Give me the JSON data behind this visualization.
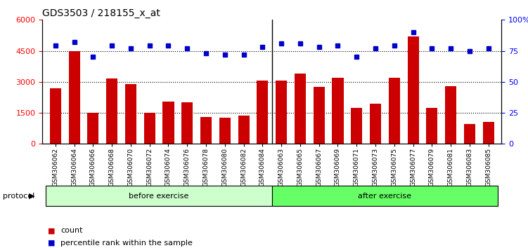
{
  "title": "GDS3503 / 218155_x_at",
  "categories": [
    "GSM306062",
    "GSM306064",
    "GSM306066",
    "GSM306068",
    "GSM306070",
    "GSM306072",
    "GSM306074",
    "GSM306076",
    "GSM306078",
    "GSM306080",
    "GSM306082",
    "GSM306084",
    "GSM306063",
    "GSM306065",
    "GSM306067",
    "GSM306069",
    "GSM306071",
    "GSM306073",
    "GSM306075",
    "GSM306077",
    "GSM306079",
    "GSM306081",
    "GSM306083",
    "GSM306085"
  ],
  "bar_values": [
    2700,
    4500,
    1500,
    3150,
    2900,
    1500,
    2050,
    2000,
    1300,
    1250,
    1350,
    3050,
    3050,
    3400,
    2750,
    3200,
    1750,
    1950,
    3200,
    5200,
    1750,
    2800,
    950,
    1050
  ],
  "percentile_values": [
    79,
    82,
    70,
    79,
    77,
    79,
    79,
    77,
    73,
    72,
    72,
    78,
    81,
    81,
    78,
    79,
    70,
    77,
    79,
    90,
    77,
    77,
    75,
    77
  ],
  "bar_color": "#cc0000",
  "dot_color": "#0000cc",
  "left_ylim": [
    0,
    6000
  ],
  "right_ylim": [
    0,
    100
  ],
  "left_yticks": [
    0,
    1500,
    3000,
    4500,
    6000
  ],
  "right_yticks": [
    0,
    25,
    50,
    75,
    100
  ],
  "right_yticklabels": [
    "0",
    "25",
    "50",
    "75",
    "100%"
  ],
  "grid_values": [
    1500,
    3000,
    4500
  ],
  "n_before": 12,
  "n_after": 12,
  "before_label": "before exercise",
  "after_label": "after exercise",
  "protocol_label": "protocol",
  "legend_count": "count",
  "legend_percentile": "percentile rank within the sample",
  "before_color": "#ccffcc",
  "after_color": "#66ff66",
  "background_color": "#ffffff"
}
